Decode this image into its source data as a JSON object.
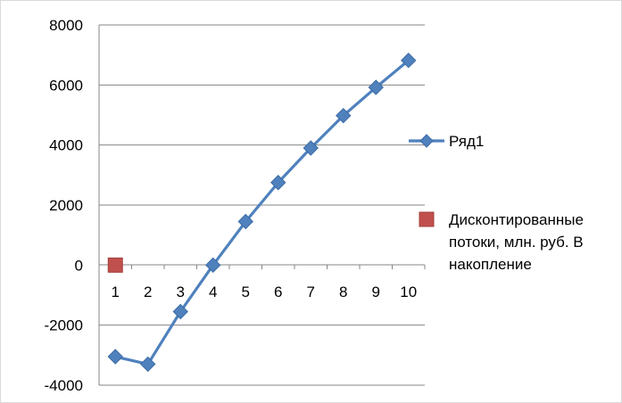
{
  "chart_data": {
    "type": "line",
    "x": [
      "1",
      "2",
      "3",
      "4",
      "5",
      "6",
      "7",
      "8",
      "9",
      "10"
    ],
    "series": [
      {
        "name": "Ряд1",
        "color": "#4f81bd",
        "marker": "diamond",
        "line": true,
        "values": [
          -3050,
          -3300,
          -1550,
          0,
          1450,
          2750,
          3900,
          4980,
          5920,
          6820
        ]
      },
      {
        "name": "Дисконтированные потоки, млн. руб. В накопление",
        "color": "#c0504d",
        "marker": "square",
        "line": false,
        "values": [
          0,
          null,
          null,
          null,
          null,
          null,
          null,
          null,
          null,
          null
        ]
      }
    ],
    "ylim": [
      -4000,
      8000
    ],
    "yticks": [
      -4000,
      -2000,
      0,
      2000,
      4000,
      6000,
      8000
    ],
    "grid": "horizontal",
    "legend": "right",
    "title": "",
    "xlabel": "",
    "ylabel": ""
  }
}
